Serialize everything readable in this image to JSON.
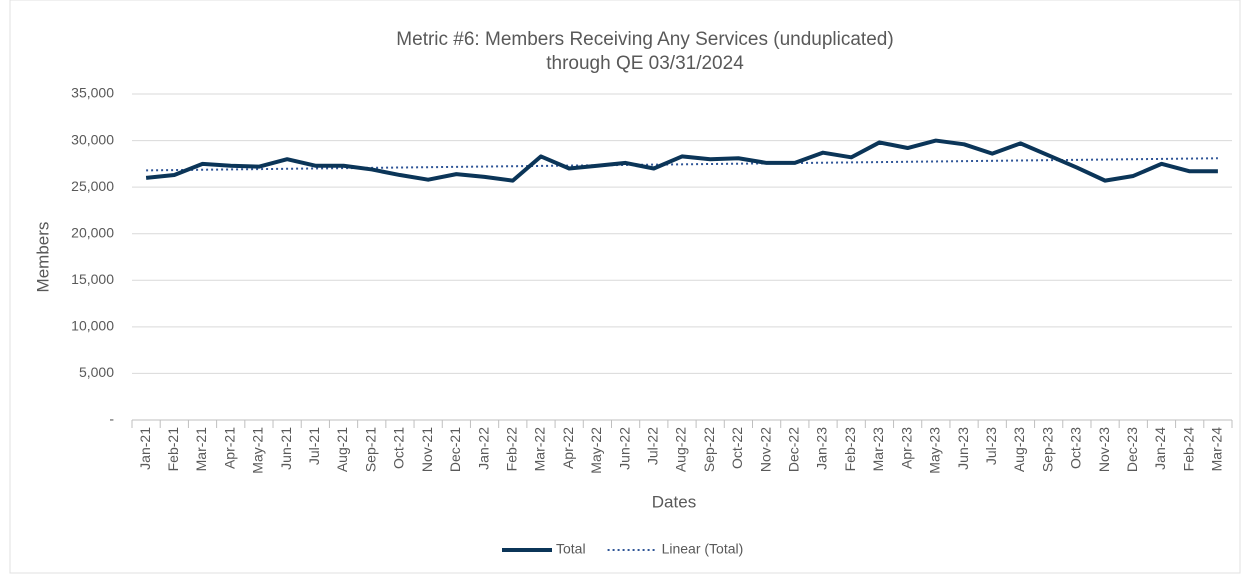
{
  "chart_data": {
    "type": "line",
    "title": "Metric #6: Members Receiving Any Services (unduplicated)",
    "subtitle": "through QE 03/31/2024",
    "x_label": "Dates",
    "y_label": "Members",
    "categories": [
      "Jan-21",
      "Feb-21",
      "Mar-21",
      "Apr-21",
      "May-21",
      "Jun-21",
      "Jul-21",
      "Aug-21",
      "Sep-21",
      "Oct-21",
      "Nov-21",
      "Dec-21",
      "Jan-22",
      "Feb-22",
      "Mar-22",
      "Apr-22",
      "May-22",
      "Jun-22",
      "Jul-22",
      "Aug-22",
      "Sep-22",
      "Oct-22",
      "Nov-22",
      "Dec-22",
      "Jan-23",
      "Feb-23",
      "Mar-23",
      "Apr-23",
      "May-23",
      "Jun-23",
      "Jul-23",
      "Aug-23",
      "Sep-23",
      "Oct-23",
      "Nov-23",
      "Dec-23",
      "Jan-24",
      "Feb-24",
      "Mar-24"
    ],
    "series": [
      {
        "name": "Total",
        "color": "#0b3558",
        "style": "solid",
        "values": [
          26000,
          26300,
          27500,
          27300,
          27200,
          28000,
          27300,
          27300,
          26900,
          26300,
          25800,
          26400,
          26100,
          25700,
          28300,
          27000,
          27300,
          27600,
          27000,
          28300,
          28000,
          28100,
          27600,
          27600,
          28700,
          28200,
          29800,
          29200,
          30000,
          29600,
          28600,
          29700,
          28400,
          27100,
          25700,
          26200,
          27500,
          26700,
          26700
        ]
      },
      {
        "name": "Linear (Total)",
        "color": "#2f5597",
        "style": "dotted",
        "values": [
          26800,
          26834,
          26868,
          26903,
          26937,
          26971,
          27005,
          27039,
          27074,
          27108,
          27142,
          27176,
          27211,
          27245,
          27279,
          27313,
          27347,
          27382,
          27416,
          27450,
          27484,
          27518,
          27553,
          27587,
          27621,
          27655,
          27689,
          27724,
          27758,
          27792,
          27826,
          27861,
          27895,
          27929,
          27963,
          27997,
          28032,
          28066,
          28100
        ]
      }
    ],
    "ylim": [
      0,
      35000
    ],
    "yticks": [
      {
        "value": 0,
        "label": "-"
      },
      {
        "value": 5000,
        "label": "5,000"
      },
      {
        "value": 10000,
        "label": "10,000"
      },
      {
        "value": 15000,
        "label": "15,000"
      },
      {
        "value": 20000,
        "label": "20,000"
      },
      {
        "value": 25000,
        "label": "25,000"
      },
      {
        "value": 30000,
        "label": "30,000"
      },
      {
        "value": 35000,
        "label": "35,000"
      }
    ],
    "grid": true,
    "legend": "bottom"
  }
}
